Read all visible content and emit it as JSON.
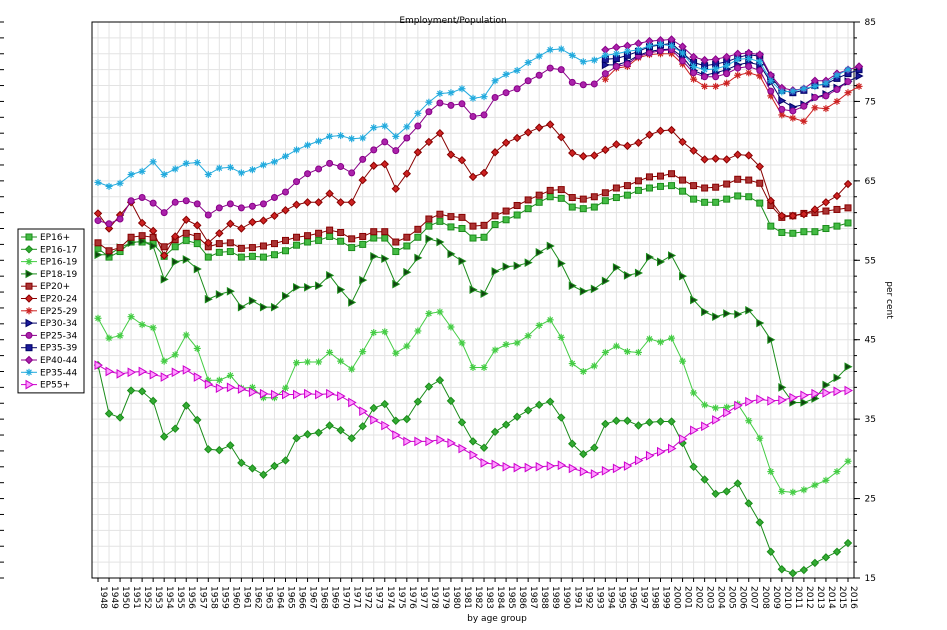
{
  "chart_data": {
    "type": "line",
    "title": "Employment/Population",
    "xlabel": "by age group",
    "ylabel": "per cent",
    "ylim": [
      15,
      85
    ],
    "y_ticks": [
      15,
      25,
      35,
      45,
      55,
      65,
      75,
      85
    ],
    "x_range": [
      1948,
      2016
    ],
    "grid": true,
    "legend_position": "left",
    "series": [
      {
        "name": "EP16+",
        "color": "#1a8c1a",
        "fill": "#44bb44",
        "marker": "square",
        "x_start": 1948,
        "values": [
          56.5,
          55.4,
          56.1,
          57.3,
          57.3,
          57.1,
          55.5,
          56.7,
          57.5,
          57.1,
          55.4,
          56.0,
          56.1,
          55.4,
          55.5,
          55.4,
          55.7,
          56.2,
          56.9,
          57.3,
          57.5,
          58.0,
          57.4,
          56.6,
          57.0,
          57.8,
          57.8,
          56.1,
          56.8,
          57.9,
          59.3,
          59.9,
          59.2,
          59.0,
          57.8,
          57.9,
          59.5,
          60.1,
          60.7,
          61.5,
          62.3,
          63.0,
          62.8,
          61.7,
          61.5,
          61.7,
          62.5,
          62.9,
          63.2,
          63.8,
          64.1,
          64.3,
          64.4,
          63.7,
          62.7,
          62.3,
          62.3,
          62.7,
          63.1,
          63.0,
          62.2,
          59.3,
          58.5,
          58.4,
          58.6,
          58.6,
          59.0,
          59.3,
          59.7
        ]
      },
      {
        "name": "EP16-17",
        "color": "#1a8c1a",
        "fill": "#33aa33",
        "marker": "diamond",
        "x_start": 1948,
        "values": [
          41.8,
          35.7,
          35.2,
          38.6,
          38.5,
          37.3,
          32.8,
          33.8,
          36.7,
          34.9,
          31.2,
          31.1,
          31.7,
          29.5,
          28.8,
          28.0,
          29.1,
          29.8,
          32.6,
          33.1,
          33.3,
          34.2,
          33.6,
          32.6,
          34.1,
          36.4,
          36.9,
          34.8,
          35.0,
          37.2,
          39.1,
          39.9,
          37.3,
          34.6,
          32.2,
          31.4,
          33.4,
          34.3,
          35.3,
          36.1,
          36.8,
          37.2,
          35.2,
          31.9,
          30.6,
          31.4,
          34.4,
          34.8,
          34.8,
          34.2,
          34.6,
          34.7,
          34.7,
          32.0,
          29.0,
          27.4,
          25.6,
          25.9,
          26.9,
          24.4,
          22.0,
          18.3,
          16.1,
          15.6,
          16.0,
          16.9,
          17.6,
          18.3,
          19.4
        ]
      },
      {
        "name": "EP16-19",
        "color": "#44cc44",
        "fill": "#44cc44",
        "marker": "star",
        "x_start": 1948,
        "values": [
          47.7,
          45.2,
          45.5,
          47.9,
          46.9,
          46.5,
          42.3,
          43.1,
          45.6,
          43.9,
          39.9,
          39.9,
          40.5,
          38.9,
          39.0,
          37.7,
          37.7,
          38.9,
          42.1,
          42.2,
          42.2,
          43.4,
          42.3,
          41.3,
          43.5,
          45.9,
          46.0,
          43.3,
          44.2,
          46.1,
          48.3,
          48.5,
          46.6,
          44.6,
          41.5,
          41.5,
          43.7,
          44.4,
          44.6,
          45.5,
          46.8,
          47.5,
          45.3,
          42.0,
          41.0,
          41.7,
          43.4,
          44.2,
          43.5,
          43.4,
          45.1,
          44.7,
          45.2,
          42.3,
          38.3,
          36.8,
          36.4,
          36.5,
          36.9,
          34.8,
          32.6,
          28.4,
          25.9,
          25.8,
          26.1,
          26.7,
          27.3,
          28.4,
          29.7
        ]
      },
      {
        "name": "EP18-19",
        "color": "#1a8c1a",
        "fill": "#114411",
        "marker": "triangle",
        "x_start": 1948,
        "values": [
          55.7,
          55.7,
          56.6,
          57.2,
          57.4,
          56.8,
          52.6,
          54.8,
          55.1,
          53.9,
          50.1,
          50.7,
          51.1,
          49.1,
          49.9,
          49.1,
          49.1,
          50.5,
          51.6,
          51.6,
          51.8,
          53.1,
          51.3,
          49.7,
          52.5,
          55.5,
          55.2,
          52.0,
          53.5,
          55.3,
          57.7,
          57.3,
          55.8,
          54.9,
          51.3,
          50.8,
          53.6,
          54.2,
          54.3,
          54.7,
          56.0,
          56.8,
          54.6,
          51.8,
          51.1,
          51.4,
          52.4,
          54.1,
          53.1,
          53.4,
          55.4,
          54.8,
          55.6,
          53.0,
          50.0,
          48.5,
          47.9,
          48.3,
          48.2,
          48.7,
          47.1,
          45.0,
          39.0,
          37.1,
          37.1,
          37.6,
          39.3,
          40.2,
          41.6
        ]
      },
      {
        "name": "EP20+",
        "color": "#880000",
        "fill": "#aa3333",
        "marker": "square",
        "x_start": 1948,
        "values": [
          57.2,
          56.2,
          56.6,
          57.9,
          58.1,
          57.9,
          56.7,
          57.6,
          58.4,
          58.0,
          56.7,
          57.1,
          57.2,
          56.5,
          56.6,
          56.8,
          57.1,
          57.5,
          57.9,
          58.1,
          58.4,
          58.8,
          58.5,
          57.7,
          58.0,
          58.6,
          58.6,
          57.3,
          57.9,
          58.9,
          60.2,
          60.8,
          60.5,
          60.4,
          59.3,
          59.4,
          60.6,
          61.2,
          61.9,
          62.6,
          63.2,
          63.8,
          63.9,
          62.9,
          62.7,
          63.0,
          63.5,
          64.1,
          64.4,
          65.0,
          65.5,
          65.6,
          65.9,
          65.1,
          64.4,
          64.1,
          64.2,
          64.6,
          65.2,
          65.1,
          64.7,
          61.9,
          60.4,
          60.6,
          60.9,
          61.0,
          61.2,
          61.4,
          61.6
        ]
      },
      {
        "name": "EP20-24",
        "color": "#880000",
        "fill": "#cc2222",
        "marker": "diamond",
        "x_start": 1948,
        "values": [
          60.9,
          59.0,
          60.7,
          62.3,
          59.7,
          58.7,
          55.6,
          58.0,
          60.1,
          59.4,
          57.2,
          58.4,
          59.6,
          59.0,
          59.8,
          60.0,
          60.6,
          61.3,
          62.0,
          62.3,
          62.3,
          63.4,
          62.3,
          62.3,
          65.1,
          66.9,
          67.1,
          64.0,
          65.9,
          68.6,
          69.9,
          71.0,
          68.3,
          67.6,
          65.5,
          66.0,
          68.6,
          69.8,
          70.4,
          71.1,
          71.7,
          72.1,
          70.5,
          68.5,
          68.1,
          68.2,
          68.9,
          69.6,
          69.4,
          69.8,
          70.8,
          71.3,
          71.4,
          69.9,
          68.8,
          67.7,
          67.8,
          67.7,
          68.3,
          68.2,
          66.8,
          62.5,
          60.6,
          60.6,
          60.8,
          61.4,
          62.3,
          63.1,
          64.6
        ]
      },
      {
        "name": "EP25-29",
        "color": "#cc2222",
        "fill": "#cc2222",
        "marker": "star",
        "x_start": 1994,
        "values": [
          77.8,
          79.2,
          79.4,
          80.5,
          80.9,
          81.0,
          81.0,
          79.7,
          77.8,
          76.9,
          76.9,
          77.3,
          78.3,
          78.6,
          78.2,
          75.7,
          73.3,
          72.9,
          72.5,
          74.2,
          74.1,
          75.0,
          76.1,
          76.9
        ]
      },
      {
        "name": "EP30-34",
        "color": "#000066",
        "fill": "#1a1a99",
        "marker": "triangle",
        "x_start": 1994,
        "values": [
          79.6,
          79.6,
          80.0,
          80.8,
          81.3,
          81.5,
          81.6,
          80.6,
          78.9,
          78.3,
          78.6,
          79.0,
          79.6,
          79.9,
          79.6,
          77.4,
          75.1,
          74.3,
          74.6,
          75.5,
          75.9,
          76.7,
          77.5,
          78.2
        ]
      },
      {
        "name": "EP25-34",
        "color": "#880088",
        "fill": "#aa22aa",
        "marker": "circle",
        "x_start": 1948,
        "values": [
          60.0,
          59.6,
          60.2,
          62.5,
          62.9,
          62.2,
          61.0,
          62.3,
          62.5,
          62.1,
          60.7,
          61.6,
          62.1,
          61.6,
          61.8,
          62.1,
          62.9,
          63.6,
          64.9,
          65.9,
          66.5,
          67.2,
          66.8,
          66.0,
          67.7,
          68.9,
          69.9,
          68.8,
          70.4,
          71.9,
          73.7,
          74.8,
          74.5,
          74.7,
          73.1,
          73.3,
          75.5,
          76.1,
          76.6,
          77.6,
          78.3,
          79.2,
          79.0,
          77.4,
          77.1,
          77.2,
          78.5,
          79.4,
          79.7,
          80.7,
          81.1,
          81.4,
          81.5,
          80.1,
          78.6,
          78.1,
          78.1,
          78.5,
          79.2,
          79.4,
          78.9,
          76.3,
          74.0,
          73.8,
          74.4,
          75.5,
          75.7,
          76.5,
          77.5
        ]
      },
      {
        "name": "EP35-39",
        "color": "#000066",
        "fill": "#1a1a99",
        "marker": "square",
        "x_start": 1994,
        "values": [
          80.3,
          80.4,
          80.8,
          81.3,
          81.9,
          82.1,
          82.3,
          81.1,
          79.9,
          79.5,
          79.7,
          80.0,
          80.5,
          80.9,
          80.7,
          78.1,
          76.4,
          76.1,
          76.4,
          77.0,
          77.2,
          77.9,
          78.5,
          79.0
        ]
      },
      {
        "name": "EP40-44",
        "color": "#880088",
        "fill": "#aa22aa",
        "marker": "diamond",
        "x_start": 1994,
        "values": [
          81.5,
          81.8,
          82.0,
          82.3,
          82.6,
          82.7,
          82.8,
          81.9,
          80.6,
          80.2,
          80.3,
          80.6,
          81.0,
          81.1,
          80.9,
          78.3,
          76.7,
          76.4,
          76.6,
          77.6,
          77.6,
          78.5,
          79.0,
          79.4
        ]
      },
      {
        "name": "EP35-44",
        "color": "#22aadd",
        "fill": "#22aadd",
        "marker": "star",
        "x_start": 1948,
        "values": [
          64.8,
          64.3,
          64.7,
          65.8,
          66.2,
          67.4,
          65.8,
          66.5,
          67.2,
          67.3,
          65.8,
          66.6,
          66.7,
          66.0,
          66.4,
          67.0,
          67.4,
          68.1,
          68.9,
          69.5,
          70.0,
          70.6,
          70.7,
          70.3,
          70.4,
          71.7,
          71.9,
          70.6,
          71.8,
          73.5,
          74.9,
          76.0,
          76.1,
          76.6,
          75.4,
          75.6,
          77.6,
          78.4,
          78.9,
          79.9,
          80.7,
          81.5,
          81.6,
          80.8,
          80.0,
          80.2,
          80.8,
          81.0,
          81.3,
          81.5,
          82.0,
          82.2,
          82.0,
          81.1,
          79.4,
          79.0,
          79.1,
          79.5,
          80.3,
          80.4,
          80.0,
          77.6,
          76.2,
          76.3,
          76.6,
          76.9,
          77.3,
          78.3,
          79.0
        ]
      },
      {
        "name": "EP55+",
        "color": "#cc00cc",
        "fill": "#ff99ff",
        "marker": "triangle-right",
        "x_start": 1948,
        "values": [
          41.8,
          41.0,
          40.7,
          40.9,
          41.0,
          40.6,
          40.3,
          40.9,
          41.2,
          40.3,
          39.4,
          38.9,
          39.0,
          38.8,
          38.4,
          38.2,
          38.1,
          38.1,
          38.1,
          38.2,
          38.1,
          38.2,
          37.9,
          37.1,
          36.0,
          34.9,
          34.2,
          33.0,
          32.2,
          32.2,
          32.2,
          32.4,
          32.0,
          31.3,
          30.5,
          29.5,
          29.3,
          29.0,
          28.9,
          28.9,
          29.0,
          29.1,
          29.2,
          28.8,
          28.4,
          28.1,
          28.5,
          28.8,
          29.1,
          29.8,
          30.4,
          30.9,
          31.3,
          32.5,
          33.6,
          34.1,
          34.9,
          35.8,
          36.7,
          37.2,
          37.5,
          37.3,
          37.4,
          37.7,
          38.0,
          38.2,
          38.3,
          38.5,
          38.6
        ]
      }
    ]
  }
}
